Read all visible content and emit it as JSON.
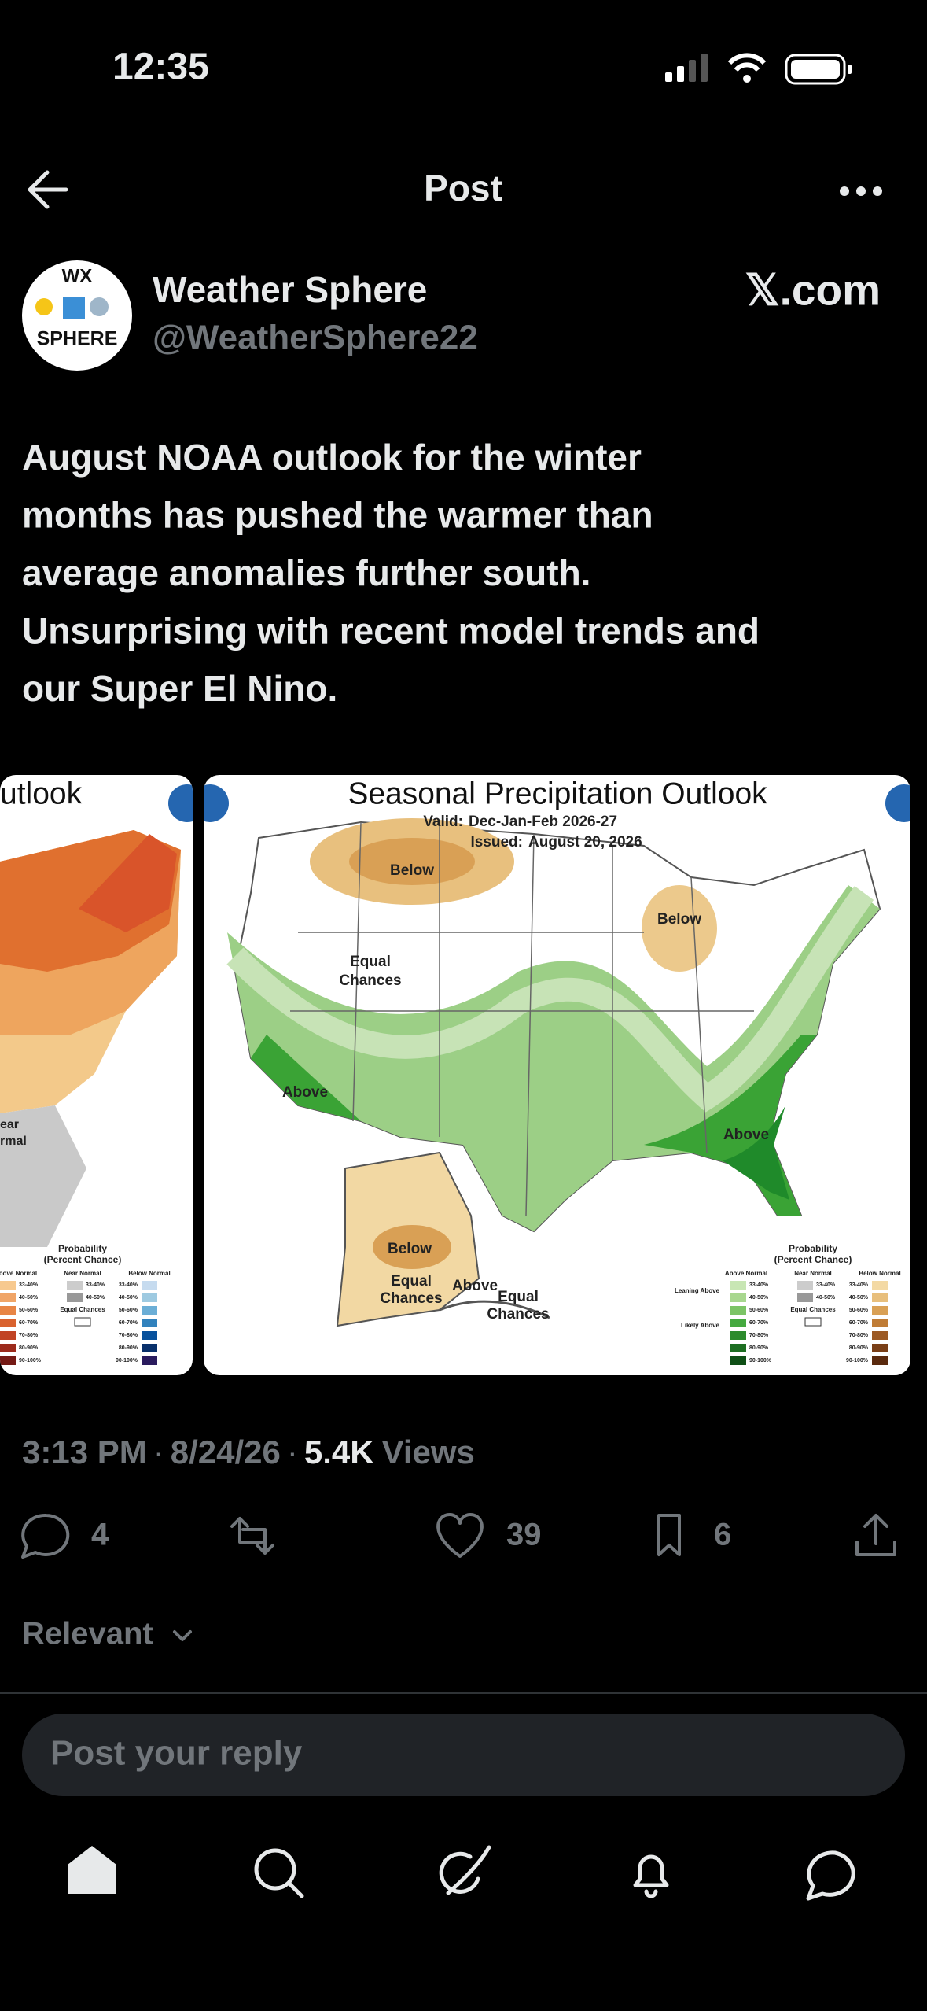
{
  "status_bar": {
    "time": "12:35"
  },
  "header": {
    "title": "Post"
  },
  "post": {
    "avatar": {
      "top": "WX",
      "bottom": "SPHERE"
    },
    "author_name": "Weather Sphere",
    "handle": "@WeatherSphere22",
    "badge": "𝕏.com",
    "text_lines": [
      "August NOAA outlook for the winter",
      "months has pushed the warmer than",
      "average anomalies further south.",
      "Unsurprising with recent model trends and",
      "our Super El Nino."
    ],
    "left_image": {
      "title": "utlook",
      "labels": [
        "ear",
        "rmal"
      ],
      "legend": {
        "title": [
          "Probability",
          "(Percent Chance)"
        ],
        "headers": [
          "Above Normal",
          "Near Normal",
          "Below Normal"
        ],
        "near": "Equal Chances",
        "percents": [
          "33-40%",
          "40-50%",
          "50-60%",
          "60-70%",
          "70-80%",
          "80-90%",
          "90-100%"
        ]
      }
    },
    "right_image": {
      "title": "Seasonal Precipitation Outlook",
      "valid_label": "Valid:",
      "valid_value": "Dec-Jan-Feb 2026-27",
      "issued_label": "Issued:",
      "issued_value": "August 20, 2026",
      "labels": [
        "Below",
        "Below",
        "Equal Chances",
        "Above",
        "Above",
        "Below",
        "Equal Chances",
        "Above",
        "Equal Chances"
      ],
      "legend": {
        "title": [
          "Probability",
          "(Percent Chance)"
        ],
        "headers": [
          "Above Normal",
          "Near Normal",
          "Below Normal"
        ],
        "leaning": "Leaning Above",
        "likely": "Likely Above",
        "near": "Equal Chances",
        "percents": [
          "33-40%",
          "40-50%",
          "50-60%",
          "60-70%",
          "70-80%",
          "80-90%",
          "90-100%"
        ]
      }
    },
    "time": "3:13 PM",
    "separator": "·",
    "date": "8/24/26",
    "views_count": "5.4K",
    "views_label": "Views",
    "replies": 4,
    "likes": 39,
    "bookmarks": 6
  },
  "sort": "Relevant",
  "reply_placeholder": "Post your reply"
}
